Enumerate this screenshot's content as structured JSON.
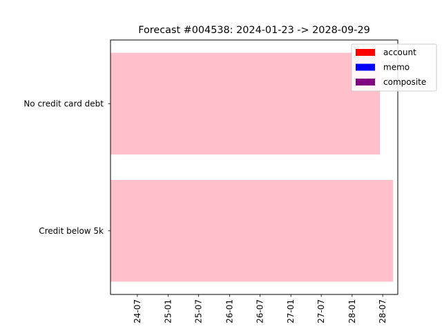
{
  "chart_data": {
    "type": "bar",
    "orientation": "horizontal",
    "title": "Forecast #004538: 2024-01-23 -> 2028-09-29",
    "categories": [
      "No credit card debt",
      "Credit below 5k"
    ],
    "bars": [
      {
        "category": "No credit card debt",
        "start": "2024-01-23",
        "end": "2028-06-15",
        "color": "#ffc0cb"
      },
      {
        "category": "Credit below 5k",
        "start": "2024-01-23",
        "end": "2028-09-01",
        "color": "#ffc0cb"
      }
    ],
    "x_ticks": [
      "24-07",
      "25-01",
      "25-07",
      "26-01",
      "26-07",
      "27-01",
      "27-07",
      "28-01",
      "28-07"
    ],
    "x_tick_dates": [
      "2024-07-01",
      "2025-01-01",
      "2025-07-01",
      "2026-01-01",
      "2026-07-01",
      "2027-01-01",
      "2027-07-01",
      "2028-01-01",
      "2028-07-01"
    ],
    "xlim": [
      "2024-01-23",
      "2028-09-29"
    ],
    "legend": {
      "placement": "top-right",
      "entries": [
        {
          "label": "account",
          "color": "#ff0000"
        },
        {
          "label": "memo",
          "color": "#0000ff"
        },
        {
          "label": "composite",
          "color": "#800080"
        }
      ]
    },
    "grid": false
  }
}
